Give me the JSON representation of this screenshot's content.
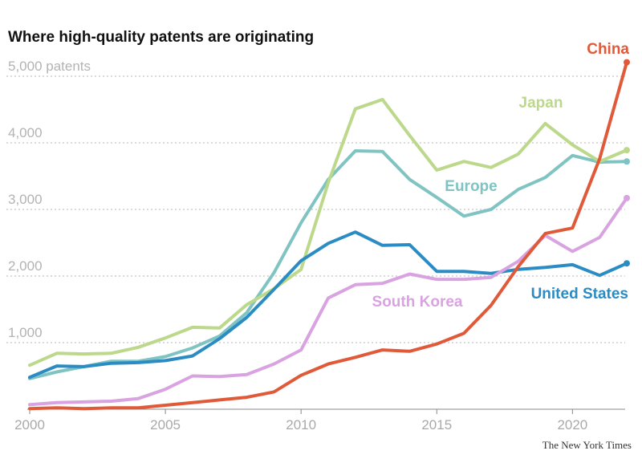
{
  "chart_data": {
    "type": "line",
    "title": "Where high-quality patents are originating",
    "xlabel": "",
    "ylabel": "",
    "y_unit_label": "5,000 patents",
    "xlim": [
      2000,
      2022
    ],
    "ylim": [
      0,
      5000
    ],
    "x_ticks": [
      2000,
      2005,
      2010,
      2015,
      2020
    ],
    "x_tick_labels": [
      "2000",
      "2005",
      "2010",
      "2015",
      "2020"
    ],
    "y_ticks": [
      1000,
      2000,
      3000,
      4000,
      5000
    ],
    "y_tick_labels": [
      "1,000",
      "2,000",
      "3,000",
      "4,000",
      "5,000 patents"
    ],
    "x": [
      2000,
      2001,
      2002,
      2003,
      2004,
      2005,
      2006,
      2007,
      2008,
      2009,
      2010,
      2011,
      2012,
      2013,
      2014,
      2015,
      2016,
      2017,
      2018,
      2019,
      2020,
      2021,
      2022
    ],
    "series": [
      {
        "name": "Europe",
        "label": "Europe",
        "color": "#7fc4c2",
        "values": [
          460,
          560,
          640,
          720,
          720,
          790,
          920,
          1100,
          1450,
          2050,
          2800,
          3450,
          3880,
          3870,
          3450,
          3180,
          2900,
          3000,
          3300,
          3480,
          3810,
          3710,
          3720
        ]
      },
      {
        "name": "Japan",
        "label": "Japan",
        "color": "#bcd88a",
        "values": [
          660,
          840,
          830,
          840,
          930,
          1070,
          1230,
          1220,
          1570,
          1810,
          2100,
          3400,
          4510,
          4650,
          4110,
          3590,
          3720,
          3630,
          3830,
          4290,
          3970,
          3720,
          3890
        ]
      },
      {
        "name": "United States",
        "label": "United States",
        "color": "#2b8cc4",
        "values": [
          480,
          650,
          640,
          690,
          700,
          730,
          800,
          1060,
          1380,
          1800,
          2230,
          2490,
          2660,
          2460,
          2470,
          2070,
          2070,
          2040,
          2100,
          2130,
          2170,
          2010,
          2190
        ]
      },
      {
        "name": "South Korea",
        "label": "South Korea",
        "color": "#d8a3e0",
        "values": [
          70,
          100,
          110,
          120,
          160,
          300,
          500,
          490,
          520,
          680,
          890,
          1670,
          1870,
          1890,
          2030,
          1950,
          1950,
          1980,
          2220,
          2610,
          2370,
          2580,
          3170
        ]
      },
      {
        "name": "China",
        "label": "China",
        "color": "#e05a3a",
        "values": [
          10,
          20,
          10,
          20,
          20,
          60,
          100,
          140,
          180,
          260,
          510,
          680,
          780,
          890,
          870,
          980,
          1140,
          1560,
          2140,
          2640,
          2720,
          3760,
          5210
        ]
      }
    ]
  },
  "credit": "The New York Times"
}
